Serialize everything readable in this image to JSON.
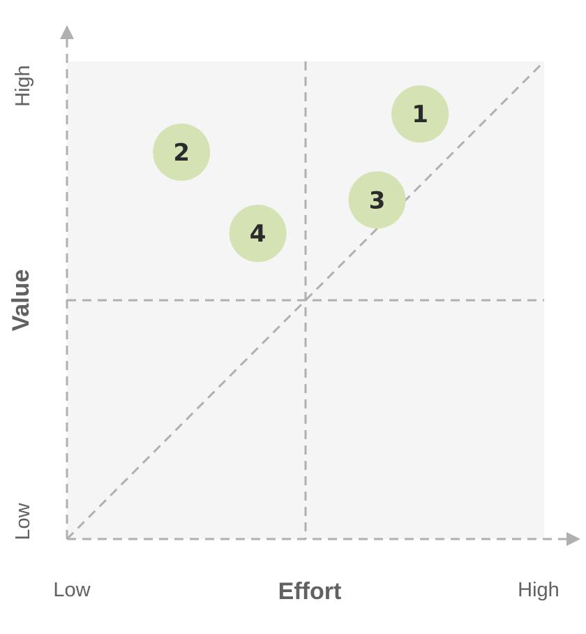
{
  "chart_data": {
    "type": "scatter",
    "title": "",
    "xlabel": "Effort",
    "ylabel": "Value",
    "x_tick_labels": {
      "low": "Low",
      "high": "High"
    },
    "y_tick_labels": {
      "low": "Low",
      "high": "High"
    },
    "xlim": [
      0,
      100
    ],
    "ylim": [
      0,
      100
    ],
    "quadrant_split": {
      "x": 50,
      "y": 50
    },
    "diagonal_reference_line": true,
    "grid": false,
    "points": [
      {
        "label": "1",
        "x": 74,
        "y": 89
      },
      {
        "label": "2",
        "x": 24,
        "y": 81
      },
      {
        "label": "3",
        "x": 65,
        "y": 71
      },
      {
        "label": "4",
        "x": 40,
        "y": 64
      }
    ],
    "colors": {
      "plot_background": "#f5f5f5",
      "dashed_lines": "#b0b0b0",
      "axis_arrows": "#b0b0b0",
      "bubble_fill": "#d4e2b4",
      "bubble_text": "#2b2b2b",
      "axis_text": "#616161"
    }
  }
}
